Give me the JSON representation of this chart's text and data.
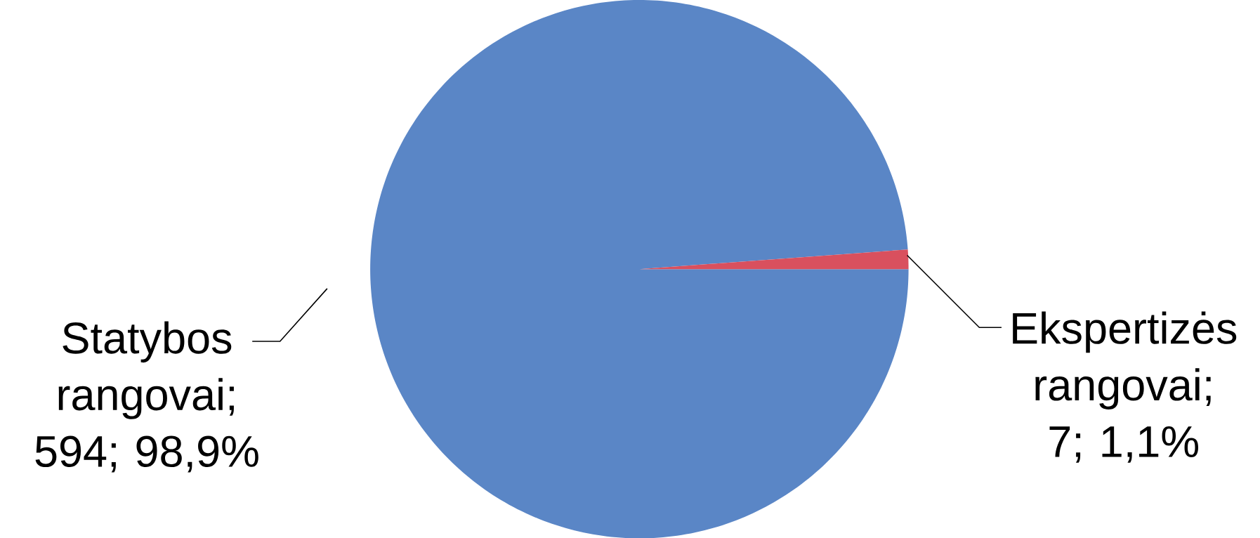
{
  "chart_data": {
    "type": "pie",
    "categories": [
      "Statybos rangovai",
      "Ekspertizės rangovai"
    ],
    "values": [
      594,
      7
    ],
    "colors": [
      "#5a86c6",
      "#d9505e"
    ],
    "value_labels": [
      "; 594; 98,9%",
      "; 7; 1,1%"
    ]
  }
}
